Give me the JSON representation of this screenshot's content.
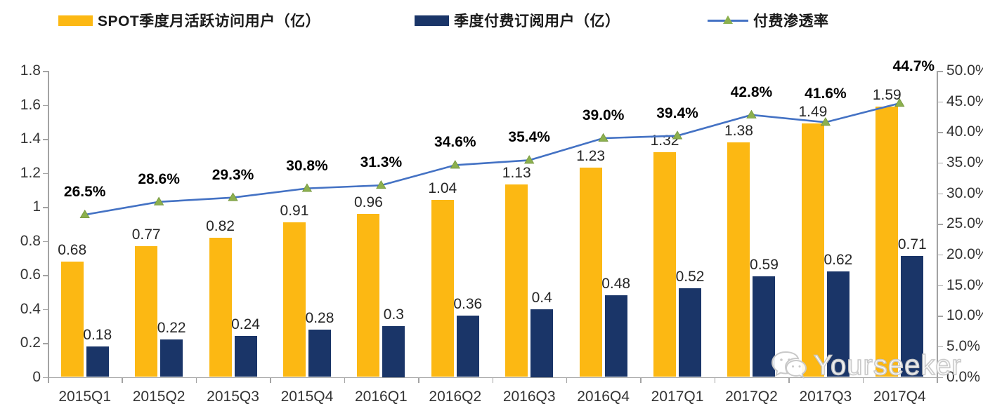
{
  "chart_data": {
    "type": "bar",
    "subtype": "combo-bar-line",
    "categories": [
      "2015Q1",
      "2015Q2",
      "2015Q3",
      "2015Q4",
      "2016Q1",
      "2016Q2",
      "2016Q3",
      "2016Q4",
      "2017Q1",
      "2017Q2",
      "2017Q3",
      "2017Q4"
    ],
    "series": [
      {
        "name": "SPOT季度月活跃访问用户（亿）",
        "type": "bar",
        "axis": "left",
        "color": "#fcb813",
        "values": [
          0.68,
          0.77,
          0.82,
          0.91,
          0.96,
          1.04,
          1.13,
          1.23,
          1.32,
          1.38,
          1.49,
          1.59
        ],
        "labels": [
          "0.68",
          "0.77",
          "0.82",
          "0.91",
          "0.96",
          "1.04",
          "1.13",
          "1.23",
          "1.32",
          "1.38",
          "1.49",
          "1.59"
        ]
      },
      {
        "name": "季度付费订阅用户（亿）",
        "type": "bar",
        "axis": "left",
        "color": "#1a3568",
        "values": [
          0.18,
          0.22,
          0.24,
          0.28,
          0.3,
          0.36,
          0.4,
          0.48,
          0.52,
          0.59,
          0.62,
          0.71
        ],
        "labels": [
          "0.18",
          "0.22",
          "0.24",
          "0.28",
          "0.3",
          "0.36",
          "0.4",
          "0.48",
          "0.52",
          "0.59",
          "0.62",
          "0.71"
        ]
      },
      {
        "name": "付费渗透率",
        "type": "line",
        "axis": "right",
        "color": "#4472c4",
        "marker": "triangle",
        "marker_color": "#8cb04e",
        "values": [
          26.5,
          28.6,
          29.3,
          30.8,
          31.3,
          34.6,
          35.4,
          39.0,
          39.4,
          42.8,
          41.6,
          44.7
        ],
        "labels": [
          "26.5%",
          "28.6%",
          "29.3%",
          "30.8%",
          "31.3%",
          "34.6%",
          "35.4%",
          "39.0%",
          "39.4%",
          "42.8%",
          "41.6%",
          "44.7%"
        ]
      }
    ],
    "left_axis": {
      "min": 0,
      "max": 1.8,
      "ticks": [
        "0",
        "0.2",
        "0.4",
        "0.6",
        "0.8",
        "1",
        "1.2",
        "1.4",
        "1.6",
        "1.8"
      ]
    },
    "right_axis": {
      "min": 0,
      "max": 50,
      "ticks": [
        "0.0%",
        "5.0%",
        "10.0%",
        "15.0%",
        "20.0%",
        "25.0%",
        "30.0%",
        "35.0%",
        "40.0%",
        "45.0%",
        "50.0%"
      ]
    },
    "title": "",
    "grid": false,
    "legend_position": "top"
  },
  "watermark": {
    "text": "Yourseeker",
    "icon": "wechat-icon"
  }
}
